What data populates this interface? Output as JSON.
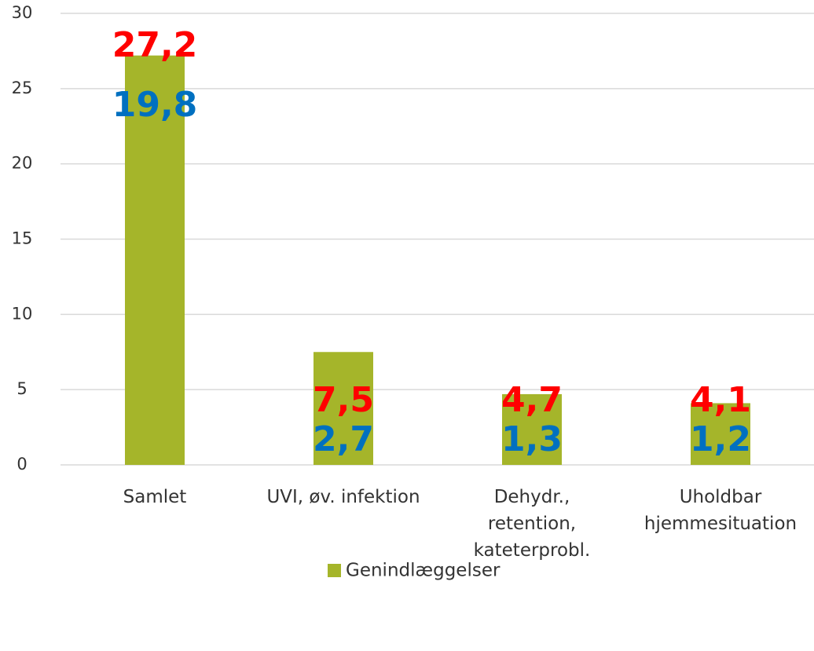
{
  "chart_data": {
    "type": "bar",
    "categories": [
      "Samlet",
      "UVI, øv. infektion",
      "Dehydr.,\nretention,\nkateterprobl.",
      "Uholdbar\nhjemmesituation"
    ],
    "series": [
      {
        "name": "Genindlæggelser",
        "color": "#a5b52a",
        "values": [
          27.2,
          7.5,
          4.7,
          4.1
        ],
        "value_labels": [
          "27,2",
          "7,5",
          "4,7",
          "4,1"
        ],
        "label_color": "#ff0000"
      }
    ],
    "annotations": {
      "color": "#0070c0",
      "labels": [
        "19,8",
        "2,7",
        "1,3",
        "1,2"
      ]
    },
    "ylim": [
      0,
      30
    ],
    "yticks": [
      0,
      5,
      10,
      15,
      20,
      25,
      30
    ],
    "grid": true,
    "legend": "bottom"
  }
}
